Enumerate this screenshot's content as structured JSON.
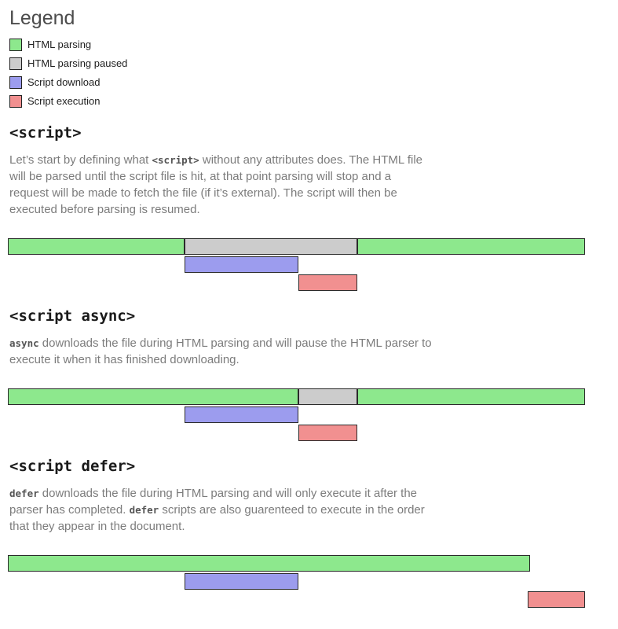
{
  "colors": {
    "parsing": "#8de88d",
    "paused": "#cccccc",
    "download": "#9c9cee",
    "execution": "#f19090"
  },
  "legend": {
    "title": "Legend",
    "items": [
      {
        "label": "HTML parsing",
        "color_key": "parsing",
        "icon": "html-parsing-swatch"
      },
      {
        "label": "HTML parsing paused",
        "color_key": "paused",
        "icon": "html-parsing-paused-swatch"
      },
      {
        "label": "Script download",
        "color_key": "download",
        "icon": "script-download-swatch"
      },
      {
        "label": "Script execution",
        "color_key": "execution",
        "icon": "script-execution-swatch"
      }
    ]
  },
  "sections": [
    {
      "heading": "<script>",
      "paragraph": [
        {
          "t": "text",
          "v": "Let’s start by defining what "
        },
        {
          "t": "code",
          "v": "<script>"
        },
        {
          "t": "text",
          "v": " without any attributes does. The HTML file will be parsed until the script file is hit, at that point parsing will stop and a request will be made to fetch the file (if it’s external). The script will then be executed before parsing is resumed."
        }
      ],
      "diagram": {
        "rows": [
          [
            {
              "start": 0,
              "end": 30.6,
              "color": "parsing"
            },
            {
              "start": 30.6,
              "end": 60.5,
              "color": "paused"
            },
            {
              "start": 60.5,
              "end": 100,
              "color": "parsing"
            }
          ],
          [
            {
              "start": 30.6,
              "end": 50.3,
              "color": "download"
            }
          ],
          [
            {
              "start": 50.3,
              "end": 60.5,
              "color": "execution"
            }
          ]
        ]
      }
    },
    {
      "heading": "<script async>",
      "paragraph": [
        {
          "t": "code",
          "v": "async"
        },
        {
          "t": "text",
          "v": " downloads the file during HTML parsing and will pause the HTML parser to execute it when it has finished downloading."
        }
      ],
      "diagram": {
        "rows": [
          [
            {
              "start": 0,
              "end": 50.3,
              "color": "parsing"
            },
            {
              "start": 50.3,
              "end": 60.5,
              "color": "paused"
            },
            {
              "start": 60.5,
              "end": 100,
              "color": "parsing"
            }
          ],
          [
            {
              "start": 30.6,
              "end": 50.3,
              "color": "download"
            }
          ],
          [
            {
              "start": 50.3,
              "end": 60.5,
              "color": "execution"
            }
          ]
        ]
      }
    },
    {
      "heading": "<script defer>",
      "paragraph": [
        {
          "t": "code",
          "v": "defer"
        },
        {
          "t": "text",
          "v": " downloads the file during HTML parsing and will only execute it after the parser has completed. "
        },
        {
          "t": "code",
          "v": "defer"
        },
        {
          "t": "text",
          "v": " scripts are also guarenteed to execute in the order that they appear in the document."
        }
      ],
      "diagram": {
        "rows": [
          [
            {
              "start": 0,
              "end": 90.5,
              "color": "parsing"
            }
          ],
          [
            {
              "start": 30.6,
              "end": 50.3,
              "color": "download"
            }
          ],
          [
            {
              "start": 90.1,
              "end": 100,
              "color": "execution"
            }
          ]
        ]
      }
    }
  ]
}
